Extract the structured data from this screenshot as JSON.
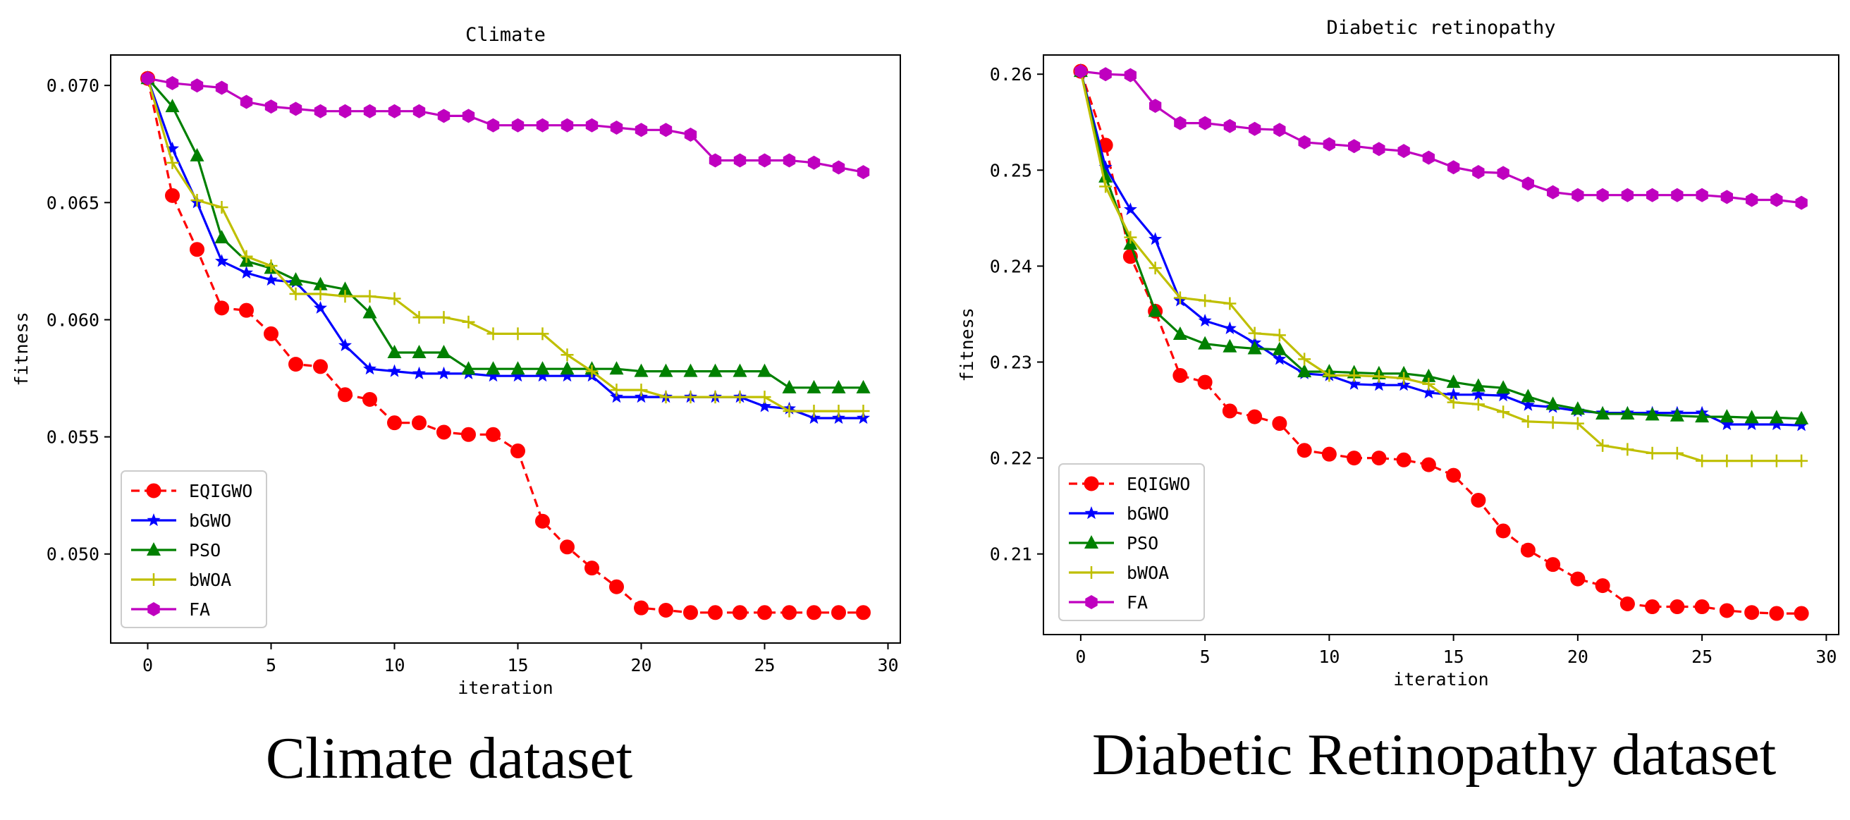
{
  "chart_data": [
    {
      "type": "line",
      "title": "Climate",
      "caption": "Climate dataset",
      "xlabel": "iteration",
      "ylabel": "fitness",
      "xlim": [
        -1.5,
        30.5
      ],
      "ylim": [
        0.0462,
        0.0713
      ],
      "xticks": [
        0,
        5,
        10,
        15,
        20,
        25,
        30
      ],
      "xtick_labels": [
        "0",
        "5",
        "10",
        "15",
        "20",
        "25",
        "30"
      ],
      "yticks": [
        0.05,
        0.055,
        0.06,
        0.065,
        0.07
      ],
      "ytick_labels": [
        "0.050",
        "0.055",
        "0.060",
        "0.065",
        "0.070"
      ],
      "legend_position": "lower-left",
      "x": [
        0,
        1,
        2,
        3,
        4,
        5,
        6,
        7,
        8,
        9,
        10,
        11,
        12,
        13,
        14,
        15,
        16,
        17,
        18,
        19,
        20,
        21,
        22,
        23,
        24,
        25,
        26,
        27,
        28,
        29
      ],
      "series": [
        {
          "name": "EQIGWO",
          "color": "#ff0000",
          "marker": "circle",
          "dashed": true,
          "values": [
            0.0703,
            0.0653,
            0.063,
            0.0605,
            0.0604,
            0.0594,
            0.0581,
            0.058,
            0.0568,
            0.0566,
            0.0556,
            0.0556,
            0.0552,
            0.0551,
            0.0551,
            0.0544,
            0.0514,
            0.0503,
            0.0494,
            0.0486,
            0.0477,
            0.0476,
            0.0475,
            0.0475,
            0.0475,
            0.0475,
            0.0475,
            0.0475,
            0.0475,
            0.0475
          ]
        },
        {
          "name": "bGWO",
          "color": "#0000ff",
          "marker": "star",
          "dashed": false,
          "values": [
            0.0703,
            0.0673,
            0.065,
            0.0625,
            0.062,
            0.0617,
            0.0616,
            0.0605,
            0.0589,
            0.0579,
            0.0578,
            0.0577,
            0.0577,
            0.0577,
            0.0576,
            0.0576,
            0.0576,
            0.0576,
            0.0576,
            0.0567,
            0.0567,
            0.0567,
            0.0567,
            0.0567,
            0.0567,
            0.0563,
            0.0562,
            0.0558,
            0.0558,
            0.0558
          ]
        },
        {
          "name": "PSO",
          "color": "#008000",
          "marker": "triangle",
          "dashed": false,
          "values": [
            0.0703,
            0.0691,
            0.067,
            0.0635,
            0.0625,
            0.0622,
            0.0617,
            0.0615,
            0.0613,
            0.0603,
            0.0586,
            0.0586,
            0.0586,
            0.0579,
            0.0579,
            0.0579,
            0.0579,
            0.0579,
            0.0579,
            0.0579,
            0.0578,
            0.0578,
            0.0578,
            0.0578,
            0.0578,
            0.0578,
            0.0571,
            0.0571,
            0.0571,
            0.0571
          ]
        },
        {
          "name": "bWOA",
          "color": "#bfbf00",
          "marker": "plus",
          "dashed": false,
          "values": [
            0.0703,
            0.0667,
            0.0651,
            0.0648,
            0.0627,
            0.0623,
            0.0611,
            0.0611,
            0.061,
            0.061,
            0.0609,
            0.0601,
            0.0601,
            0.0599,
            0.0594,
            0.0594,
            0.0594,
            0.0585,
            0.0578,
            0.057,
            0.057,
            0.0567,
            0.0567,
            0.0567,
            0.0567,
            0.0567,
            0.0561,
            0.0561,
            0.0561,
            0.0561
          ]
        },
        {
          "name": "FA",
          "color": "#bf00bf",
          "marker": "hexagon",
          "dashed": false,
          "values": [
            0.0703,
            0.0701,
            0.07,
            0.0699,
            0.0693,
            0.0691,
            0.069,
            0.0689,
            0.0689,
            0.0689,
            0.0689,
            0.0689,
            0.0687,
            0.0687,
            0.0683,
            0.0683,
            0.0683,
            0.0683,
            0.0683,
            0.0682,
            0.0681,
            0.0681,
            0.0679,
            0.0668,
            0.0668,
            0.0668,
            0.0668,
            0.0667,
            0.0665,
            0.0663
          ]
        }
      ]
    },
    {
      "type": "line",
      "title": "Diabetic retinopathy",
      "caption": "Diabetic Retinopathy dataset",
      "xlabel": "iteration",
      "ylabel": "fitness",
      "xlim": [
        -1.5,
        30.5
      ],
      "ylim": [
        0.2016,
        0.262
      ],
      "xticks": [
        0,
        5,
        10,
        15,
        20,
        25,
        30
      ],
      "xtick_labels": [
        "0",
        "5",
        "10",
        "15",
        "20",
        "25",
        "30"
      ],
      "yticks": [
        0.21,
        0.22,
        0.23,
        0.24,
        0.25,
        0.26
      ],
      "ytick_labels": [
        "0.21",
        "0.22",
        "0.23",
        "0.24",
        "0.25",
        "0.26"
      ],
      "legend_position": "lower-left",
      "x": [
        0,
        1,
        2,
        3,
        4,
        5,
        6,
        7,
        8,
        9,
        10,
        11,
        12,
        13,
        14,
        15,
        16,
        17,
        18,
        19,
        20,
        21,
        22,
        23,
        24,
        25,
        26,
        27,
        28,
        29
      ],
      "series": [
        {
          "name": "EQIGWO",
          "color": "#ff0000",
          "marker": "circle",
          "dashed": true,
          "values": [
            0.2603,
            0.2526,
            0.241,
            0.2353,
            0.2286,
            0.2279,
            0.2249,
            0.2243,
            0.2236,
            0.2208,
            0.2204,
            0.22,
            0.22,
            0.2198,
            0.2193,
            0.2182,
            0.2156,
            0.2124,
            0.2104,
            0.2089,
            0.2074,
            0.2067,
            0.2048,
            0.2045,
            0.2045,
            0.2045,
            0.2041,
            0.2039,
            0.2038,
            0.2038
          ]
        },
        {
          "name": "bGWO",
          "color": "#0000ff",
          "marker": "star",
          "dashed": false,
          "values": [
            0.2603,
            0.2503,
            0.2459,
            0.2428,
            0.2364,
            0.2343,
            0.2335,
            0.232,
            0.2303,
            0.2288,
            0.2286,
            0.2277,
            0.2276,
            0.2276,
            0.2268,
            0.2266,
            0.2266,
            0.2265,
            0.2255,
            0.2253,
            0.2249,
            0.2247,
            0.2247,
            0.2247,
            0.2247,
            0.2247,
            0.2235,
            0.2235,
            0.2235,
            0.2234
          ]
        },
        {
          "name": "PSO",
          "color": "#008000",
          "marker": "triangle",
          "dashed": false,
          "values": [
            0.2603,
            0.2493,
            0.2423,
            0.2353,
            0.2329,
            0.2319,
            0.2316,
            0.2314,
            0.2313,
            0.229,
            0.229,
            0.2289,
            0.2288,
            0.2288,
            0.2285,
            0.2279,
            0.2275,
            0.2273,
            0.2264,
            0.2256,
            0.2251,
            0.2246,
            0.2246,
            0.2245,
            0.2244,
            0.2243,
            0.2243,
            0.2242,
            0.2242,
            0.2241
          ]
        },
        {
          "name": "bWOA",
          "color": "#bfbf00",
          "marker": "plus",
          "dashed": false,
          "values": [
            0.2603,
            0.2483,
            0.243,
            0.2398,
            0.2367,
            0.2364,
            0.2361,
            0.233,
            0.2328,
            0.2303,
            0.2286,
            0.2286,
            0.2285,
            0.2283,
            0.2277,
            0.2258,
            0.2256,
            0.2248,
            0.2238,
            0.2237,
            0.2236,
            0.2213,
            0.2209,
            0.2205,
            0.2205,
            0.2197,
            0.2197,
            0.2197,
            0.2197,
            0.2197
          ]
        },
        {
          "name": "FA",
          "color": "#bf00bf",
          "marker": "hexagon",
          "dashed": false,
          "values": [
            0.2603,
            0.26,
            0.2599,
            0.2567,
            0.2549,
            0.2549,
            0.2546,
            0.2543,
            0.2542,
            0.2529,
            0.2527,
            0.2525,
            0.2522,
            0.252,
            0.2513,
            0.2503,
            0.2498,
            0.2497,
            0.2486,
            0.2477,
            0.2474,
            0.2474,
            0.2474,
            0.2474,
            0.2474,
            0.2474,
            0.2472,
            0.2469,
            0.2469,
            0.2466
          ]
        }
      ]
    }
  ]
}
